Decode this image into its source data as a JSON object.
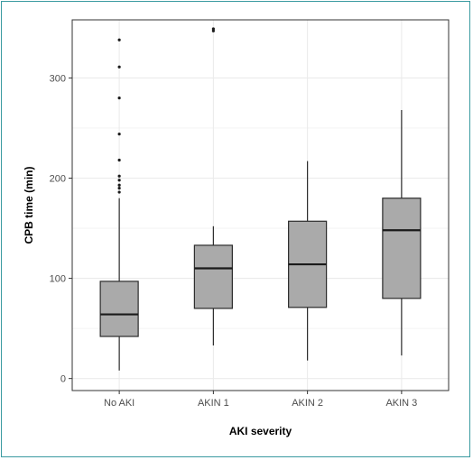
{
  "chart_data": {
    "type": "boxplot",
    "xlabel": "AKI severity",
    "ylabel": "CPB time (min)",
    "ylim": [
      -12,
      358
    ],
    "y_ticks": [
      0,
      100,
      200,
      300
    ],
    "y_minor_ticks": [
      50,
      150,
      250
    ],
    "grid": true,
    "categories": [
      "No AKI",
      "AKIN 1",
      "AKIN 2",
      "AKIN 3"
    ],
    "boxes": [
      {
        "category": "No AKI",
        "whisker_low": 8,
        "q1": 42,
        "median": 64,
        "q3": 97,
        "whisker_high": 180,
        "outliers": [
          186,
          190,
          193,
          198,
          202,
          218,
          244,
          280,
          311,
          338
        ]
      },
      {
        "category": "AKIN 1",
        "whisker_low": 33,
        "q1": 70,
        "median": 110,
        "q3": 133,
        "whisker_high": 152,
        "outliers": [
          347,
          349
        ]
      },
      {
        "category": "AKIN 2",
        "whisker_low": 18,
        "q1": 71,
        "median": 114,
        "q3": 157,
        "whisker_high": 217,
        "outliers": []
      },
      {
        "category": "AKIN 3",
        "whisker_low": 23,
        "q1": 80,
        "median": 148,
        "q3": 180,
        "whisker_high": 268,
        "outliers": []
      }
    ],
    "box_fill": "#aaaaaa",
    "box_stroke": "#2b2b2b",
    "grid_color": "#ebebeb",
    "panel_border": "#333333"
  }
}
